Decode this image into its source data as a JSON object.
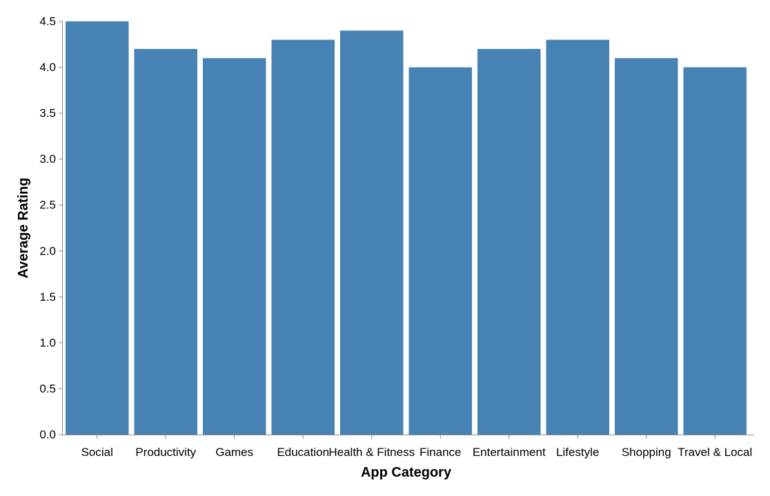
{
  "chart_data": {
    "type": "bar",
    "title": "",
    "xlabel": "App Category",
    "ylabel": "Average Rating",
    "categories": [
      "Social",
      "Productivity",
      "Games",
      "Education",
      "Health & Fitness",
      "Finance",
      "Entertainment",
      "Lifestyle",
      "Shopping",
      "Travel & Local"
    ],
    "values": [
      4.5,
      4.2,
      4.1,
      4.3,
      4.4,
      4.0,
      4.2,
      4.3,
      4.1,
      4.0
    ],
    "ylim": [
      0,
      4.5
    ],
    "yticks": [
      "0.0",
      "0.5",
      "1.0",
      "1.5",
      "2.0",
      "2.5",
      "3.0",
      "3.5",
      "4.0",
      "4.5"
    ],
    "grid": false,
    "legend": "none",
    "bar_color": "#4682b4"
  }
}
